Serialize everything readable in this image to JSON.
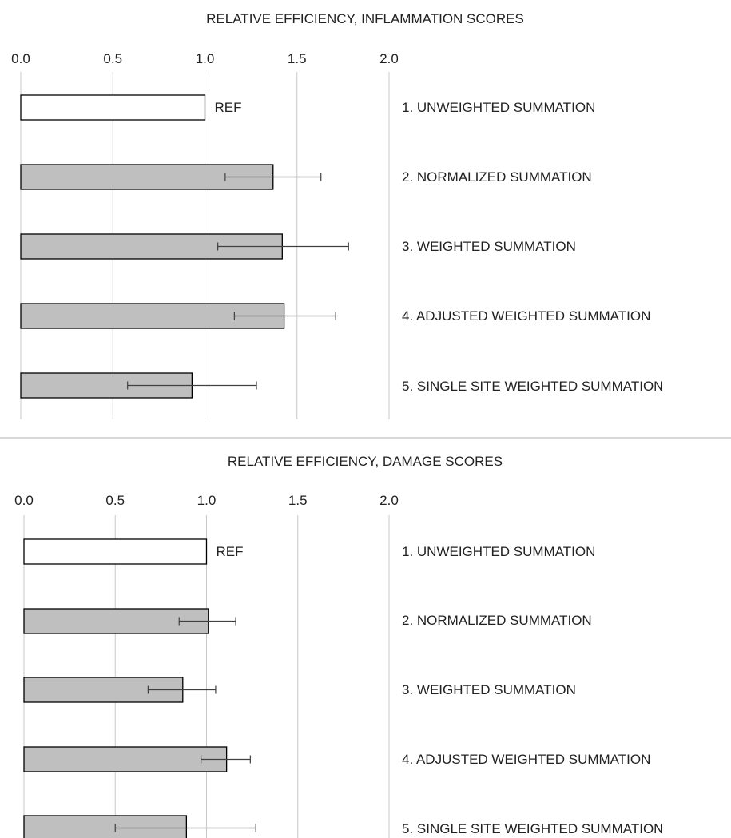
{
  "chart_data": [
    {
      "type": "bar",
      "orientation": "horizontal",
      "title": "RELATIVE EFFICIENCY, INFLAMMATION SCORES",
      "xlim": [
        0,
        2
      ],
      "x_ticks": [
        0,
        0.5,
        1,
        1.5,
        2
      ],
      "x_tick_labels": [
        "0.0",
        "0.5",
        "1.0",
        "1.5",
        "2.0"
      ],
      "grid": true,
      "categories": [
        "1. UNWEIGHTED SUMMATION",
        "2. NORMALIZED SUMMATION",
        "3. WEIGHTED SUMMATION",
        "4. ADJUSTED WEIGHTED SUMMATION",
        "5. SINGLE SITE WEIGHTED SUMMATION"
      ],
      "values": [
        1.0,
        1.37,
        1.42,
        1.43,
        0.93
      ],
      "error_low": [
        null,
        1.11,
        1.07,
        1.16,
        0.58
      ],
      "error_high": [
        null,
        1.63,
        1.78,
        1.71,
        1.28
      ],
      "bar_labels": [
        "REF",
        "",
        "",
        "",
        ""
      ],
      "bar_colors": [
        "#ffffff",
        "#bfbfbf",
        "#bfbfbf",
        "#bfbfbf",
        "#bfbfbf"
      ]
    },
    {
      "type": "bar",
      "orientation": "horizontal",
      "title": "RELATIVE EFFICIENCY, DAMAGE SCORES",
      "xlim": [
        0,
        2
      ],
      "x_ticks": [
        0,
        0.5,
        1,
        1.5,
        2
      ],
      "x_tick_labels": [
        "0.0",
        "0.5",
        "1.0",
        "1.5",
        "2.0"
      ],
      "grid": true,
      "categories": [
        "1. UNWEIGHTED SUMMATION",
        "2. NORMALIZED SUMMATION",
        "3. WEIGHTED SUMMATION",
        "4. ADJUSTED WEIGHTED SUMMATION",
        "5. SINGLE SITE WEIGHTED SUMMATION"
      ],
      "values": [
        1.0,
        1.01,
        0.87,
        1.11,
        0.89
      ],
      "error_low": [
        null,
        0.85,
        0.68,
        0.97,
        0.5
      ],
      "error_high": [
        null,
        1.16,
        1.05,
        1.24,
        1.27
      ],
      "bar_labels": [
        "REF",
        "",
        "",
        "",
        ""
      ],
      "bar_colors": [
        "#ffffff",
        "#bfbfbf",
        "#bfbfbf",
        "#bfbfbf",
        "#bfbfbf"
      ]
    }
  ],
  "colors": {
    "grid": "#c8c8c8",
    "bar_outline": "#000000",
    "error_bar": "#404040",
    "text": "#222222",
    "divider": "#b0b0b0"
  }
}
